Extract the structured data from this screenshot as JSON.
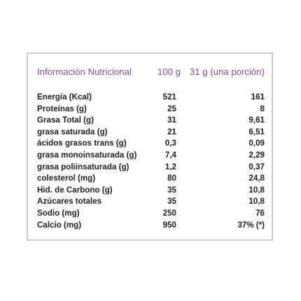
{
  "table": {
    "header": {
      "label": "Información Nutricional",
      "col_100g": "100 g",
      "col_portion": "31 g (una porción)"
    },
    "rows": [
      {
        "name": "Energía (Kcal)",
        "per_100g": "521",
        "per_portion": "161"
      },
      {
        "name": "Proteínas (g)",
        "per_100g": "25",
        "per_portion": "8"
      },
      {
        "name": "Grasa Total (g)",
        "per_100g": "31",
        "per_portion": "9,61"
      },
      {
        "name": "grasa saturada (g)",
        "per_100g": "21",
        "per_portion": "6,51"
      },
      {
        "name": "ácidos grasos trans (g)",
        "per_100g": "0,3",
        "per_portion": "0,09"
      },
      {
        "name": "grasa monoinsaturada (g)",
        "per_100g": "7,4",
        "per_portion": "2,29"
      },
      {
        "name": "grasa poliinsaturada (g)",
        "per_100g": "1,2",
        "per_portion": "0,37"
      },
      {
        "name": "colesterol (mg)",
        "per_100g": "80",
        "per_portion": "24,8"
      },
      {
        "name": "Hid. de Carbono (g)",
        "per_100g": "35",
        "per_portion": "10,8"
      },
      {
        "name": "Azúcares totales",
        "per_100g": "35",
        "per_portion": "10,8"
      },
      {
        "name": "Sodio (mg)",
        "per_100g": "250",
        "per_portion": "76"
      },
      {
        "name": "Calcio (mg)",
        "per_100g": "950",
        "per_portion": "37% (*)"
      }
    ]
  },
  "colors": {
    "header_text": "#7b4f92",
    "body_text": "#1e1e1e",
    "border": "#c9c9c9"
  }
}
